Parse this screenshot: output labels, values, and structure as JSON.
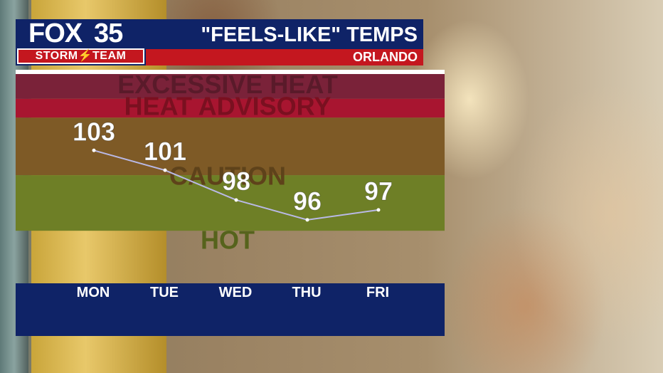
{
  "header": {
    "logo_text": "FOX",
    "logo_number": "35",
    "team_label": "STORM⚡TEAM",
    "title": "\"FEELS-LIKE\" TEMPS",
    "location": "ORLANDO",
    "colors": {
      "navy": "#0f2367",
      "red": "#c4171f"
    }
  },
  "chart_data": {
    "type": "line",
    "title": "\"FEELS-LIKE\" TEMPS",
    "subtitle": "ORLANDO",
    "categories": [
      "MON",
      "TUE",
      "WED",
      "THU",
      "FRI"
    ],
    "values": [
      103,
      101,
      98,
      96,
      97
    ],
    "ylim": [
      89.6,
      110.7
    ],
    "grid": false,
    "zones": [
      {
        "label": "EXCESSIVE HEAT",
        "from": 108.2,
        "to": 110.7,
        "color": "#7a2239",
        "text_color": "#5a1a2a"
      },
      {
        "label": "HEAT ADVISORY",
        "from": 106.3,
        "to": 108.2,
        "color": "#a81530",
        "text_color": "#7a1020"
      },
      {
        "label": "CAUTION",
        "from": 100.5,
        "to": 106.3,
        "color": "#7e5a26",
        "text_color": "#5e421a"
      },
      {
        "label": "HOT",
        "from": 94.9,
        "to": 100.5,
        "color": "#6e7f26",
        "text_color": "#56631c"
      }
    ],
    "line_color": "#b9b9e6"
  }
}
